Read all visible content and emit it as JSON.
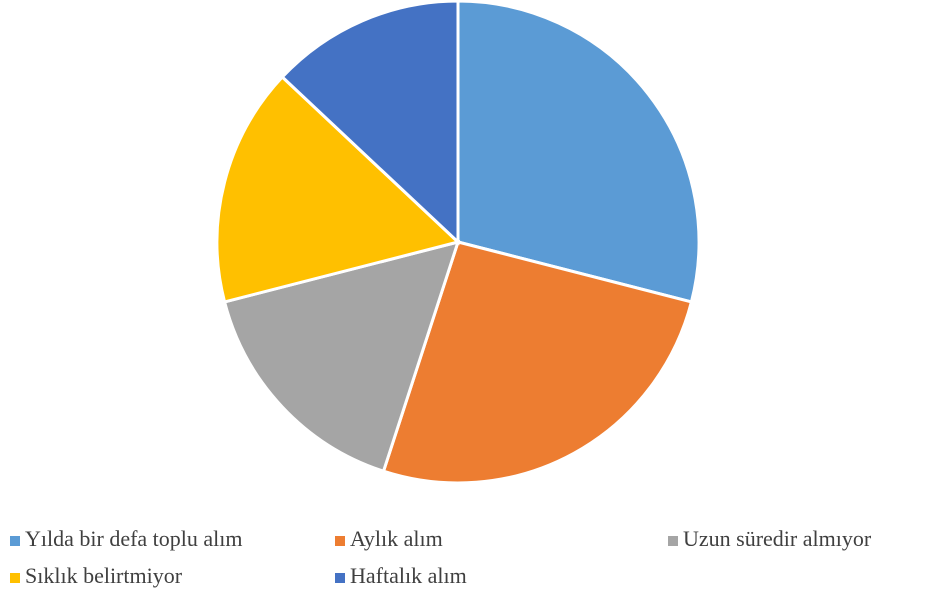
{
  "chart_data": {
    "type": "pie",
    "categories": [
      "Yılda bir defa toplu alım",
      "Aylık alım",
      "Uzun süredir almıyor",
      "Sıklık belirtmiyor",
      "Haftalık alım"
    ],
    "values": [
      29,
      26,
      16,
      16,
      13
    ],
    "colors": [
      "#5b9bd5",
      "#ed7d31",
      "#a5a5a5",
      "#ffc000",
      "#4472c4"
    ],
    "legend": "bottom"
  }
}
